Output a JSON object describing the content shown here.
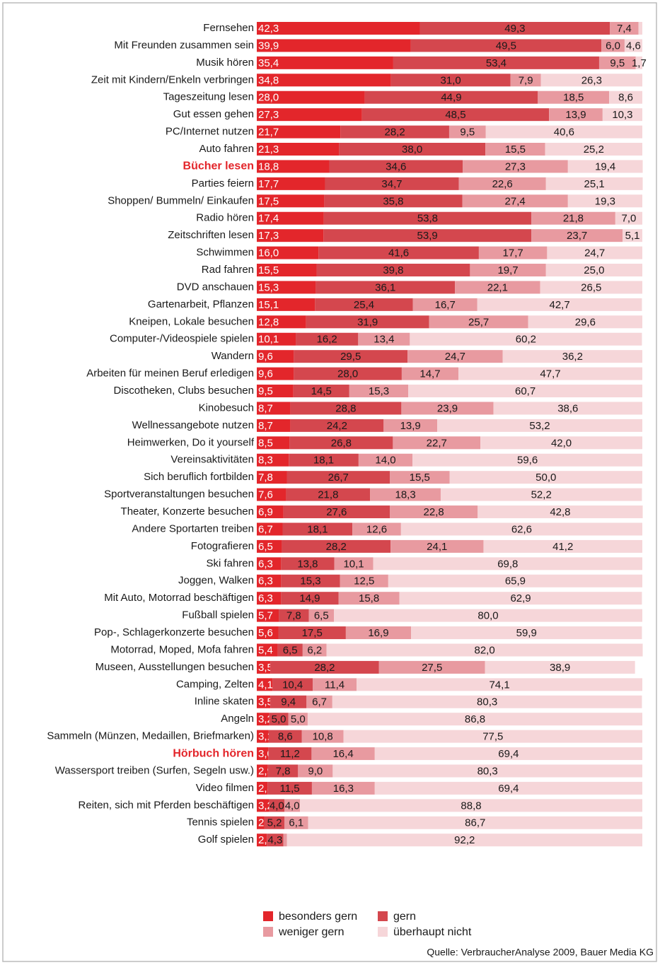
{
  "chart_data": {
    "type": "stacked_barh",
    "categories": [
      "Fernsehen",
      "Mit Freunden zusammen sein",
      "Musik hören",
      "Zeit mit Kindern/Enkeln verbringen",
      "Tageszeitung lesen",
      "Gut essen gehen",
      "PC/Internet nutzen",
      "Auto fahren",
      "Bücher lesen",
      "Parties feiern",
      "Shoppen/ Bummeln/ Einkaufen",
      "Radio hören",
      "Zeitschriften lesen",
      "Schwimmen",
      "Rad fahren",
      "DVD anschauen",
      "Gartenarbeit, Pflanzen",
      "Kneipen, Lokale besuchen",
      "Computer-/Videospiele spielen",
      "Wandern",
      "Arbeiten für meinen Beruf erledigen",
      "Discotheken, Clubs besuchen",
      "Kinobesuch",
      "Wellnessangebote nutzen",
      "Heimwerken, Do it yourself",
      "Vereinsaktivitäten",
      "Sich beruflich fortbilden",
      "Sportveranstaltungen besuchen",
      "Theater, Konzerte besuchen",
      "Andere Sportarten treiben",
      "Fotografieren",
      "Ski fahren",
      "Joggen, Walken",
      "Mit Auto, Motorrad beschäftigen",
      "Fußball spielen",
      "Pop-, Schlagerkonzerte besuchen",
      "Motorrad, Moped, Mofa fahren",
      "Museen, Ausstellungen besuchen",
      "Camping, Zelten",
      "Inline skaten",
      "Angeln",
      "Sammeln (Münzen, Medaillen, Briefmarken)",
      "Hörbuch hören",
      "Wassersport treiben (Surfen, Segeln usw.)",
      "Video filmen",
      "Reiten, sich mit Pferden beschäftigen",
      "Tennis spielen",
      "Golf spielen"
    ],
    "highlight": [
      8,
      42
    ],
    "highlight_color": "#e3262b",
    "xlim": [
      0,
      100
    ],
    "series": [
      {
        "name": "besonders gern",
        "color": "#e3262b",
        "values": [
          42.3,
          39.9,
          35.4,
          34.8,
          28.0,
          27.3,
          21.7,
          21.3,
          18.8,
          17.7,
          17.5,
          17.4,
          17.3,
          16.0,
          15.5,
          15.3,
          15.1,
          12.8,
          10.1,
          9.6,
          9.6,
          9.5,
          8.7,
          8.7,
          8.5,
          8.3,
          7.8,
          7.6,
          6.9,
          6.7,
          6.5,
          6.3,
          6.3,
          6.3,
          5.7,
          5.6,
          5.4,
          3.5,
          4.1,
          3.5,
          3.2,
          3.1,
          3.0,
          2.9,
          2.8,
          3.2,
          2,
          2.6
        ],
        "value_labels": [
          "42,3",
          "39,9",
          "35,4",
          "34,8",
          "28,0",
          "27,3",
          "21,7",
          "21,3",
          "18,8",
          "17,7",
          "17,5",
          "17,4",
          "17,3",
          "16,0",
          "15,5",
          "15,3",
          "15,1",
          "12,8",
          "10,1",
          "9,6",
          "9,6",
          "9,5",
          "8,7",
          "8,7",
          "8,5",
          "8,3",
          "7,8",
          "7,6",
          "6,9",
          "6,7",
          "6,5",
          "6,3",
          "6,3",
          "6,3",
          "5,7",
          "5,6",
          "5,4",
          "3,5",
          "4,1",
          "3,5",
          "3,2",
          "3,1",
          "3,0",
          "2,9",
          "2,8",
          "3,2",
          "2",
          "2,6"
        ]
      },
      {
        "name": "gern",
        "color": "#d4474e",
        "values": [
          49.3,
          49.5,
          53.4,
          31.0,
          44.9,
          48.5,
          28.2,
          38.0,
          34.6,
          34.7,
          35.8,
          53.8,
          53.9,
          41.6,
          39.8,
          36.1,
          25.4,
          31.9,
          16.2,
          29.5,
          28.0,
          14.5,
          28.8,
          24.2,
          26.8,
          18.1,
          26.7,
          21.8,
          27.6,
          18.1,
          28.2,
          13.8,
          15.3,
          14.9,
          7.8,
          17.5,
          6.5,
          28.2,
          10.4,
          9.4,
          5.0,
          8.6,
          11.2,
          7.8,
          11.5,
          4.0,
          5.2,
          4.3
        ],
        "value_labels": [
          "49,3",
          "49,5",
          "53,4",
          "31,0",
          "44,9",
          "48,5",
          "28,2",
          "38,0",
          "34,6",
          "34,7",
          "35,8",
          "53,8",
          "53,9",
          "41,6",
          "39,8",
          "36,1",
          "25,4",
          "31,9",
          "16,2",
          "29,5",
          "28,0",
          "14,5",
          "28,8",
          "24,2",
          "26,8",
          "18,1",
          "26,7",
          "21,8",
          "27,6",
          "18,1",
          "28,2",
          "13,8",
          "15,3",
          "14,9",
          "7,8",
          "17,5",
          "6,5",
          "28,2",
          "10,4",
          "9,4",
          "5,0",
          "8,6",
          "11,2",
          "7,8",
          "11,5",
          "4,0",
          "5,2",
          "4,3"
        ]
      },
      {
        "name": "weniger gern",
        "color": "#e89aa0",
        "values": [
          7.4,
          6.0,
          9.5,
          7.9,
          18.5,
          13.9,
          9.5,
          15.5,
          27.3,
          22.6,
          27.4,
          21.8,
          23.7,
          17.7,
          19.7,
          22.1,
          16.7,
          25.7,
          13.4,
          24.7,
          14.7,
          15.3,
          23.9,
          13.9,
          22.7,
          14.0,
          15.5,
          18.3,
          22.8,
          12.6,
          24.1,
          10.1,
          12.5,
          15.8,
          6.5,
          16.9,
          6.2,
          27.5,
          11.4,
          6.7,
          5.0,
          10.8,
          16.4,
          9.0,
          16.3,
          4.0,
          6.1,
          0.9
        ],
        "value_labels": [
          "7,4",
          "6,0",
          "9,5",
          "7,9",
          "18,5",
          "13,9",
          "9,5",
          "15,5",
          "27,3",
          "22,6",
          "27,4",
          "21,8",
          "23,7",
          "17,7",
          "19,7",
          "22,1",
          "16,7",
          "25,7",
          "13,4",
          "24,7",
          "14,7",
          "15,3",
          "23,9",
          "13,9",
          "22,7",
          "14,0",
          "15,5",
          "18,3",
          "22,8",
          "12,6",
          "24,1",
          "10,1",
          "12,5",
          "15,8",
          "6,5",
          "16,9",
          "6,2",
          "27,5",
          "11,4",
          "6,7",
          "5,0",
          "10,8",
          "16,4",
          "9,0",
          "16,3",
          "4,0",
          "6,1",
          null
        ]
      },
      {
        "name": "überhaupt nicht",
        "color": "#f6d6d9",
        "values": [
          1.0,
          4.6,
          1.7,
          26.3,
          8.6,
          10.3,
          40.6,
          25.2,
          19.4,
          25.1,
          19.3,
          7.0,
          5.1,
          24.7,
          25.0,
          26.5,
          42.7,
          29.6,
          60.2,
          36.2,
          47.7,
          60.7,
          38.6,
          53.2,
          42.0,
          59.6,
          50.0,
          52.2,
          42.8,
          62.6,
          41.2,
          69.8,
          65.9,
          62.9,
          80.0,
          59.9,
          82.0,
          38.9,
          74.1,
          80.3,
          86.8,
          77.5,
          69.4,
          80.3,
          69.4,
          88.8,
          86.7,
          92.2
        ],
        "value_labels": [
          null,
          "4,6",
          "1,7",
          "26,3",
          "8,6",
          "10,3",
          "40,6",
          "25,2",
          "19,4",
          "25,1",
          "19,3",
          "7,0",
          "5,1",
          "24,7",
          "25,0",
          "26,5",
          "42,7",
          "29,6",
          "60,2",
          "36,2",
          "47,7",
          "60,7",
          "38,6",
          "53,2",
          "42,0",
          "59,6",
          "50,0",
          "52,2",
          "42,8",
          "62,6",
          "41,2",
          "69,8",
          "65,9",
          "62,9",
          "80,0",
          "59,9",
          "82,0",
          "38,9",
          "74,1",
          "80,3",
          "86,8",
          "77,5",
          "69,4",
          "80,3",
          "69,4",
          "88,8",
          "86,7",
          "92,2"
        ]
      }
    ],
    "source": "Quelle: VerbraucherAnalyse 2009, Bauer Media KG"
  }
}
